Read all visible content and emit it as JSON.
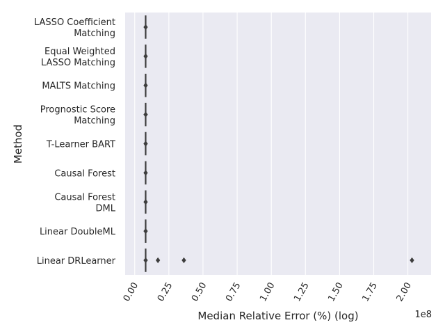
{
  "chart_data": {
    "type": "boxplot",
    "orientation": "horizontal",
    "xlabel": "Median Relative Error (%) (log)",
    "ylabel": "Method",
    "x_offset_label": "1e8",
    "x_scale_multiplier": 100000000,
    "xlim": [
      -0.07,
      2.17
    ],
    "xticks": [
      0.0,
      0.25,
      0.5,
      0.75,
      1.0,
      1.25,
      1.5,
      1.75,
      2.0
    ],
    "xtick_labels": [
      "0.00",
      "0.25",
      "0.50",
      "0.75",
      "1.00",
      "1.25",
      "1.50",
      "1.75",
      "2.00"
    ],
    "grid": true,
    "background": "#eaeaf2",
    "box_color": "#3d3d3d",
    "categories": [
      {
        "label": [
          "LASSO Coefficient",
          "Matching"
        ],
        "median": 0.08,
        "outliers": []
      },
      {
        "label": [
          "Equal Weighted",
          "LASSO Matching"
        ],
        "median": 0.08,
        "outliers": []
      },
      {
        "label": [
          "MALTS Matching"
        ],
        "median": 0.08,
        "outliers": []
      },
      {
        "label": [
          "Prognostic Score",
          "Matching"
        ],
        "median": 0.08,
        "outliers": []
      },
      {
        "label": [
          "T-Learner BART"
        ],
        "median": 0.08,
        "outliers": []
      },
      {
        "label": [
          "Causal Forest"
        ],
        "median": 0.08,
        "outliers": []
      },
      {
        "label": [
          "Causal Forest",
          "DML"
        ],
        "median": 0.08,
        "outliers": []
      },
      {
        "label": [
          "Linear DoubleML"
        ],
        "median": 0.08,
        "outliers": []
      },
      {
        "label": [
          "Linear DRLearner"
        ],
        "median": 0.08,
        "outliers": [
          0.17,
          0.36,
          2.03
        ]
      }
    ]
  }
}
